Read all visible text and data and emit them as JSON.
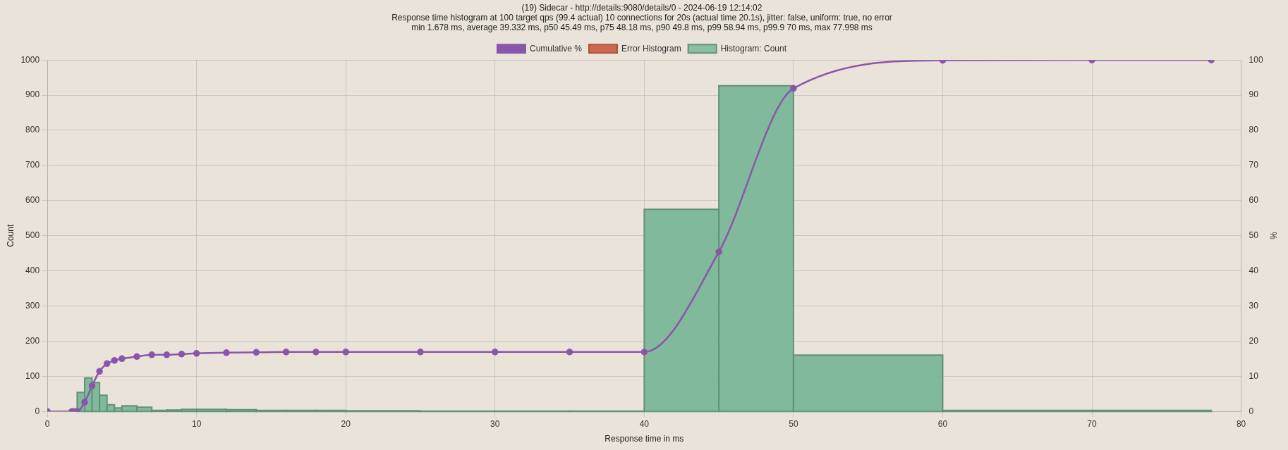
{
  "chart_data": {
    "type": "histogram",
    "title": "(19) Sidecar - http://details:9080/details/0 - 2024-06-19 12:14:02",
    "subtitle": "Response time histogram at 100 target qps (99.4 actual) 10 connections for 20s (actual time 20.1s), jitter: false, uniform: true, no error\nmin 1.678 ms, average 39.332 ms, p50 45.49 ms, p75 48.18 ms, p90 49.8 ms, p99 58.94 ms, p99.9 70 ms, max 77.998 ms",
    "xlabel": "Response time in ms",
    "ylabel": "Count",
    "y2label": "%",
    "bins": [
      2,
      2.5,
      3,
      3.5,
      4,
      4.5,
      5,
      6,
      7,
      8,
      9,
      10,
      12,
      14,
      16,
      18,
      20,
      25,
      30,
      35,
      40,
      45,
      50,
      60,
      70,
      78
    ],
    "xlim": [
      0,
      80
    ],
    "xticks": [
      0,
      10,
      20,
      30,
      40,
      50,
      60,
      70,
      80
    ],
    "ylim": [
      0,
      1000
    ],
    "yticks": [
      0,
      100,
      200,
      300,
      400,
      500,
      600,
      700,
      800,
      900,
      1000
    ],
    "y2lim": [
      0,
      100
    ],
    "y2ticks": [
      0,
      10,
      20,
      30,
      40,
      50,
      60,
      70,
      80,
      90,
      100
    ],
    "grid": true,
    "legend": "top",
    "marker": "circle",
    "series": [
      {
        "name": "Cumulative %",
        "type": "line",
        "axis": "y2",
        "color": "#8a56ac",
        "x": [
          0,
          1.65,
          1.8,
          2,
          2.5,
          3,
          3.5,
          4,
          4.5,
          5,
          6,
          7,
          8,
          9,
          10,
          12,
          14,
          16,
          18,
          20,
          25,
          30,
          35,
          40,
          45,
          50,
          60,
          70,
          78
        ],
        "values": [
          0,
          0,
          0,
          0,
          2.6,
          7.3,
          11.4,
          13.6,
          14.5,
          15,
          15.6,
          16.1,
          16.1,
          16.3,
          16.5,
          16.7,
          16.8,
          16.9,
          16.9,
          16.9,
          16.9,
          16.9,
          16.9,
          16.9,
          45.4,
          91.9,
          99.9,
          100,
          100
        ]
      },
      {
        "name": "Error Histogram",
        "type": "line",
        "color": "#d0684f"
      },
      {
        "name": "Histogram: Count",
        "color": "#7ab698",
        "values": [
          54,
          95,
          82,
          46,
          19,
          10,
          16,
          12,
          3,
          4,
          6,
          6,
          5,
          3,
          3,
          3,
          2,
          1,
          1,
          1,
          575,
          927,
          160,
          3,
          3
        ]
      }
    ]
  }
}
